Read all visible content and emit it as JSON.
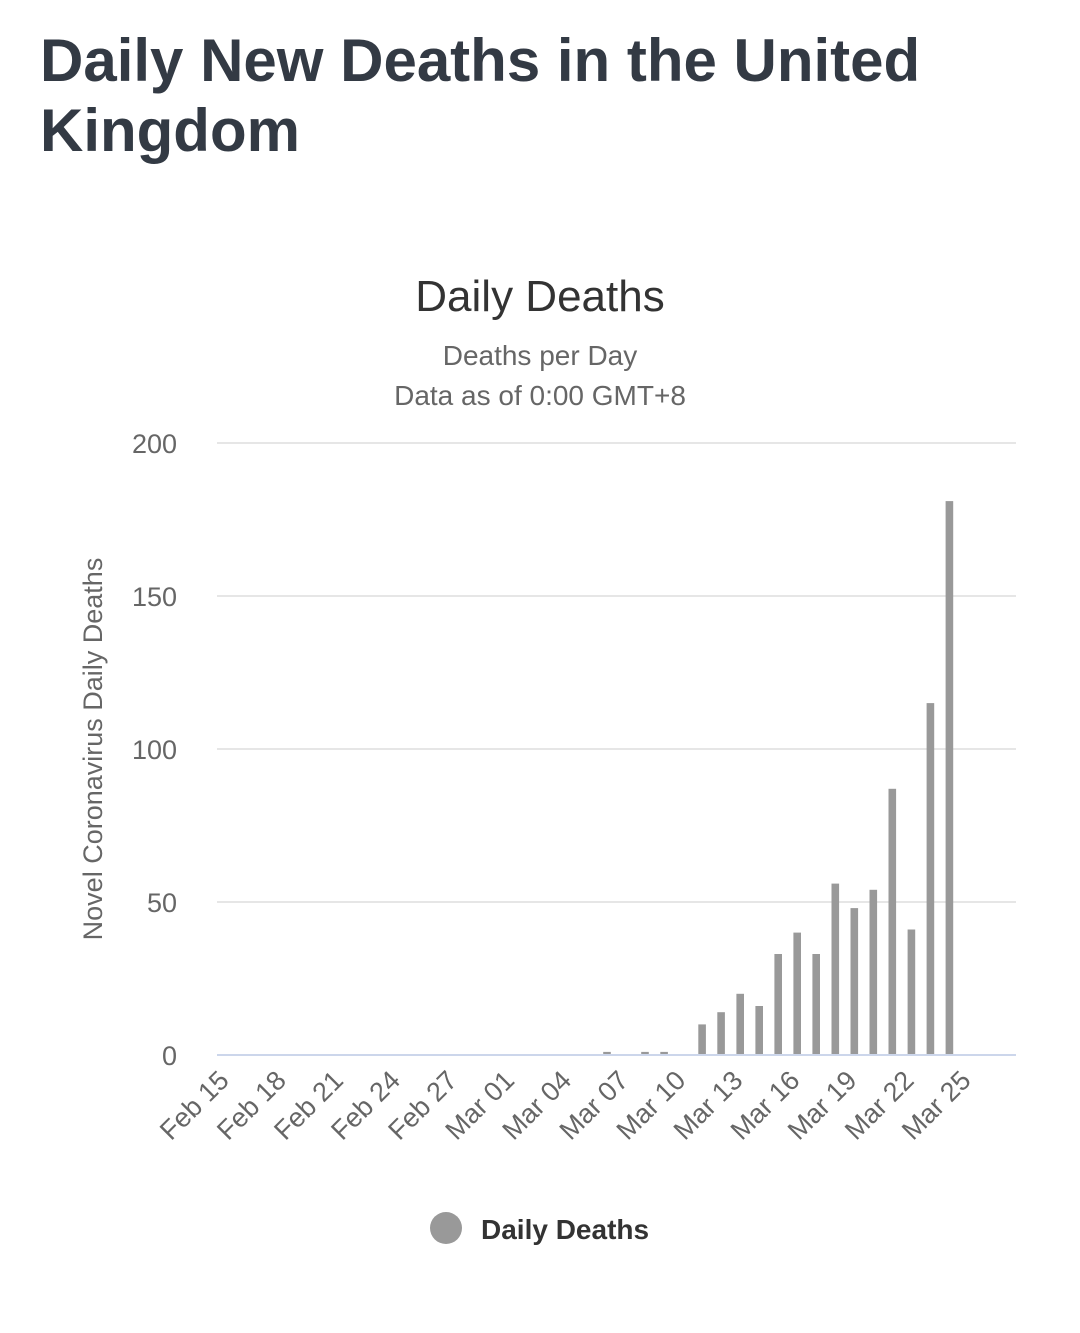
{
  "page": {
    "title": "Daily New Deaths in the United Kingdom"
  },
  "chart_data": {
    "type": "bar",
    "title": "Daily Deaths",
    "subtitle_lines": [
      "Deaths per Day",
      "Data as of 0:00 GMT+8"
    ],
    "xlabel": "",
    "ylabel": "Novel Coronavirus Daily Deaths",
    "ylim": [
      0,
      200
    ],
    "yticks": [
      0,
      50,
      100,
      150,
      200
    ],
    "grid": true,
    "legend_position": "bottom",
    "bar_color": "#999999",
    "grid_color": "#e6e6e6",
    "axis_color": "#ccd6eb",
    "x_tick_labels": [
      "Feb 15",
      "Feb 18",
      "Feb 21",
      "Feb 24",
      "Feb 27",
      "Mar 01",
      "Mar 04",
      "Mar 07",
      "Mar 10",
      "Mar 13",
      "Mar 16",
      "Mar 19",
      "Mar 22",
      "Mar 25"
    ],
    "categories": [
      "Feb 15",
      "Feb 16",
      "Feb 17",
      "Feb 18",
      "Feb 19",
      "Feb 20",
      "Feb 21",
      "Feb 22",
      "Feb 23",
      "Feb 24",
      "Feb 25",
      "Feb 26",
      "Feb 27",
      "Feb 28",
      "Feb 29",
      "Mar 01",
      "Mar 02",
      "Mar 03",
      "Mar 04",
      "Mar 05",
      "Mar 06",
      "Mar 07",
      "Mar 08",
      "Mar 09",
      "Mar 10",
      "Mar 11",
      "Mar 12",
      "Mar 13",
      "Mar 14",
      "Mar 15",
      "Mar 16",
      "Mar 17",
      "Mar 18",
      "Mar 19",
      "Mar 20",
      "Mar 21",
      "Mar 22",
      "Mar 23",
      "Mar 24",
      "Mar 25",
      "Mar 26",
      "Mar 27"
    ],
    "series": [
      {
        "name": "Daily Deaths",
        "values": [
          0,
          0,
          0,
          0,
          0,
          0,
          0,
          0,
          0,
          0,
          0,
          0,
          0,
          0,
          0,
          0,
          0,
          0,
          0,
          0,
          1,
          0,
          1,
          1,
          0,
          10,
          14,
          20,
          16,
          33,
          40,
          33,
          56,
          48,
          54,
          87,
          41,
          115,
          181,
          0,
          0,
          0
        ]
      }
    ]
  }
}
